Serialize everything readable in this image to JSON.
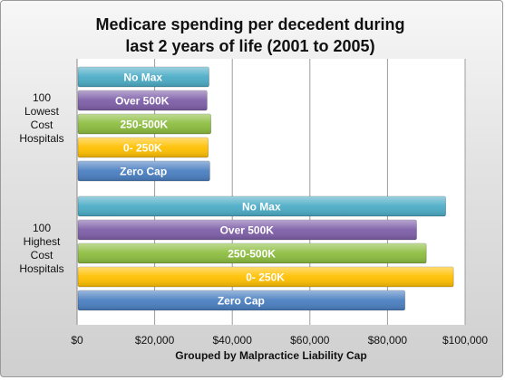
{
  "chart_data": {
    "type": "bar",
    "orientation": "horizontal",
    "title": "Medicare spending per decedent during last 2 years of life (2001 to 2005)",
    "title_lines": [
      "Medicare spending per decedent during",
      "last 2 years of life (2001 to 2005)"
    ],
    "xlabel": "Grouped by Malpractice Liability Cap",
    "xlim": [
      0,
      100000
    ],
    "x_ticks": [
      0,
      20000,
      40000,
      60000,
      80000,
      100000
    ],
    "x_tick_labels": [
      "$0",
      "$20,000",
      "$40,000",
      "$60,000",
      "$80,000",
      "$100,000"
    ],
    "grid": true,
    "groups": [
      {
        "label_lines": [
          "100",
          "Lowest",
          "Cost",
          "Hospitals"
        ],
        "bars": [
          {
            "label": "No Max",
            "value": 34000,
            "color": "#4bacc6"
          },
          {
            "label": "Over 500K",
            "value": 33500,
            "color": "#7e5fa8"
          },
          {
            "label": "250-500K",
            "value": 34500,
            "color": "#8cbd3f"
          },
          {
            "label": "0- 250K",
            "value": 33800,
            "color": "#ffc000"
          },
          {
            "label": "Zero Cap",
            "value": 34200,
            "color": "#4a7fc1"
          }
        ]
      },
      {
        "label_lines": [
          "100",
          "Highest",
          "Cost",
          "Hospitals"
        ],
        "bars": [
          {
            "label": "No Max",
            "value": 95000,
            "color": "#4bacc6"
          },
          {
            "label": "Over 500K",
            "value": 87500,
            "color": "#7e5fa8"
          },
          {
            "label": "250-500K",
            "value": 90000,
            "color": "#8cbd3f"
          },
          {
            "label": "0- 250K",
            "value": 97000,
            "color": "#ffc000"
          },
          {
            "label": "Zero Cap",
            "value": 84500,
            "color": "#4a7fc1"
          }
        ]
      }
    ]
  }
}
